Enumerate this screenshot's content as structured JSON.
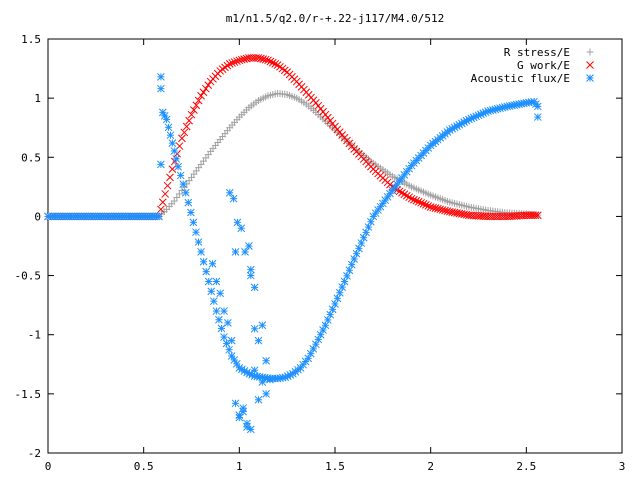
{
  "chart_data": {
    "type": "scatter",
    "title": "m1/n1.5/q2.0/r-+.22-j117/M4.0/512",
    "xlabel": "",
    "ylabel": "",
    "xlim": [
      0,
      3
    ],
    "ylim": [
      -2,
      1.5
    ],
    "xticks": [
      "0",
      "0.5",
      "1",
      "1.5",
      "2",
      "2.5",
      "3"
    ],
    "yticks": [
      "1.5",
      "1",
      "0.5",
      "0",
      "-0.5",
      "-1",
      "-1.5",
      "-2"
    ],
    "grid": false,
    "legend_position": "top-right",
    "series": [
      {
        "name": "R stress/E",
        "marker": "plus",
        "color": "#a0a0a0",
        "x": [
          0,
          0.58,
          0.62,
          0.66,
          0.7,
          0.75,
          0.8,
          0.85,
          0.9,
          0.95,
          1.0,
          1.05,
          1.1,
          1.15,
          1.2,
          1.25,
          1.3,
          1.35,
          1.4,
          1.5,
          1.6,
          1.7,
          1.8,
          1.9,
          2.0,
          2.1,
          2.2,
          2.3,
          2.4,
          2.5,
          2.56
        ],
        "y": [
          0,
          0,
          0.06,
          0.13,
          0.22,
          0.33,
          0.44,
          0.55,
          0.65,
          0.75,
          0.84,
          0.92,
          0.98,
          1.02,
          1.04,
          1.03,
          1.0,
          0.95,
          0.88,
          0.73,
          0.58,
          0.45,
          0.34,
          0.25,
          0.18,
          0.12,
          0.08,
          0.05,
          0.03,
          0.02,
          0.01
        ]
      },
      {
        "name": "G work/E",
        "marker": "cross",
        "color": "#ff0000",
        "x": [
          0,
          0.58,
          0.6,
          0.65,
          0.7,
          0.75,
          0.8,
          0.85,
          0.9,
          0.95,
          1.0,
          1.05,
          1.1,
          1.15,
          1.2,
          1.25,
          1.3,
          1.35,
          1.4,
          1.5,
          1.6,
          1.7,
          1.8,
          1.9,
          2.0,
          2.1,
          2.2,
          2.3,
          2.4,
          2.5,
          2.56
        ],
        "y": [
          0,
          0,
          0.12,
          0.4,
          0.66,
          0.86,
          1.02,
          1.14,
          1.23,
          1.29,
          1.32,
          1.34,
          1.34,
          1.32,
          1.28,
          1.22,
          1.14,
          1.05,
          0.96,
          0.76,
          0.57,
          0.4,
          0.25,
          0.15,
          0.08,
          0.04,
          0.01,
          0.0,
          0.0,
          0.01,
          0.01
        ]
      },
      {
        "name": "Acoustic flux/E",
        "marker": "star",
        "color": "#1e90ff",
        "x": [
          0,
          0.58,
          0.6,
          0.62,
          0.65,
          0.68,
          0.72,
          0.76,
          0.8,
          0.84,
          0.88,
          0.92,
          0.96,
          1.0,
          1.04,
          1.08,
          1.12,
          1.16,
          1.2,
          1.24,
          1.28,
          1.32,
          1.36,
          1.4,
          1.45,
          1.5,
          1.55,
          1.6,
          1.65,
          1.7,
          1.8,
          1.9,
          2.0,
          2.1,
          2.2,
          2.3,
          2.4,
          2.5,
          2.54,
          2.56,
          2.56
        ],
        "y": [
          0,
          0,
          0.88,
          0.82,
          0.62,
          0.42,
          0.2,
          -0.05,
          -0.3,
          -0.55,
          -0.8,
          -1.02,
          -1.18,
          -1.28,
          -1.32,
          -1.35,
          -1.36,
          -1.37,
          -1.37,
          -1.36,
          -1.33,
          -1.28,
          -1.2,
          -1.08,
          -0.92,
          -0.74,
          -0.55,
          -0.36,
          -0.18,
          0.0,
          0.22,
          0.43,
          0.6,
          0.73,
          0.82,
          0.89,
          0.93,
          0.96,
          0.97,
          0.93,
          0.84
        ],
        "scatter_x": [
          0.59,
          0.59,
          0.95,
          0.97,
          0.99,
          1.01,
          1.03,
          1.05,
          1.06,
          0.86,
          0.88,
          0.9,
          0.92,
          0.94,
          0.96,
          0.98,
          1.0,
          1.02,
          1.04,
          1.06,
          1.08,
          1.1,
          1.12,
          1.14,
          1.16,
          1.08,
          1.1,
          1.12,
          1.14,
          1.0,
          1.02,
          1.04,
          0.98,
          1.06,
          1.08
        ],
        "scatter_y": [
          1.18,
          1.08,
          0.2,
          0.15,
          -0.05,
          -0.1,
          -0.3,
          -0.25,
          -0.5,
          -0.4,
          -0.55,
          -0.65,
          -0.8,
          -0.9,
          -1.05,
          -1.58,
          -1.7,
          -1.62,
          -1.75,
          -1.8,
          -1.3,
          -1.55,
          -1.4,
          -1.22,
          -1.38,
          -0.95,
          -1.05,
          -0.92,
          -1.5,
          -1.68,
          -1.65,
          -1.78,
          -0.3,
          -0.45,
          -0.6
        ]
      }
    ]
  }
}
